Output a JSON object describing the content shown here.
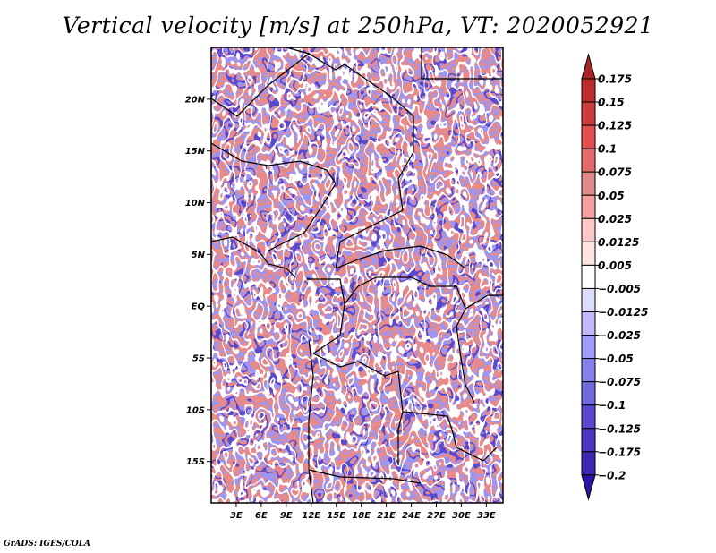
{
  "chart_data": {
    "type": "heatmap",
    "title": "Vertical velocity [m/s] at 250hPa, VT: 2020052921",
    "variable": "Vertical velocity",
    "units": "m/s",
    "level": "250hPa",
    "valid_time": "2020052921",
    "map": {
      "projection": "latlon",
      "lon_range": [
        0,
        35
      ],
      "lat_range": [
        -19,
        25
      ],
      "xticks": [
        {
          "lon": 3,
          "label": "3E"
        },
        {
          "lon": 6,
          "label": "6E"
        },
        {
          "lon": 9,
          "label": "9E"
        },
        {
          "lon": 12,
          "label": "12E"
        },
        {
          "lon": 15,
          "label": "15E"
        },
        {
          "lon": 18,
          "label": "18E"
        },
        {
          "lon": 21,
          "label": "21E"
        },
        {
          "lon": 24,
          "label": "24E"
        },
        {
          "lon": 27,
          "label": "27E"
        },
        {
          "lon": 30,
          "label": "30E"
        },
        {
          "lon": 33,
          "label": "33E"
        }
      ],
      "yticks": [
        {
          "lat": 20,
          "label": "20N"
        },
        {
          "lat": 15,
          "label": "15N"
        },
        {
          "lat": 10,
          "label": "10N"
        },
        {
          "lat": 5,
          "label": "5N"
        },
        {
          "lat": 0,
          "label": "EQ"
        },
        {
          "lat": -5,
          "label": "5S"
        },
        {
          "lat": -10,
          "label": "10S"
        },
        {
          "lat": -15,
          "label": "15S"
        }
      ],
      "grid": false
    },
    "colorbar": {
      "placement": "right",
      "orientation": "vertical",
      "extend": "both",
      "levels": [
        0.175,
        0.15,
        0.125,
        0.1,
        0.075,
        0.05,
        0.025,
        0.0125,
        0.005,
        -0.005,
        -0.0125,
        -0.025,
        -0.05,
        -0.075,
        -0.1,
        -0.125,
        -0.175,
        -0.2
      ],
      "labels": [
        "0.175",
        "0.15",
        "0.125",
        "0.1",
        "0.075",
        "0.05",
        "0.025",
        "0.0125",
        "0.005",
        "−0.005",
        "−0.0125",
        "−0.025",
        "−0.05",
        "−0.075",
        "−0.1",
        "−0.125",
        "−0.175",
        "−0.2"
      ],
      "colors_top_to_bottom": [
        "#a52727",
        "#bb2d2d",
        "#cc3c3c",
        "#e35050",
        "#e46b6b",
        "#df8a8a",
        "#f4a1a1",
        "#fcc7c7",
        "#fde4e4",
        "#ffffff",
        "#dcdcfb",
        "#c3b8fb",
        "#a39bf9",
        "#8680ec",
        "#7168db",
        "#5a48cf",
        "#4a36c3",
        "#3a28b0",
        "#2c14a4"
      ],
      "max_arrow_color": "#a52727",
      "min_arrow_color": "#2c14a4"
    }
  },
  "footer": "GrADS: IGES/COLA"
}
